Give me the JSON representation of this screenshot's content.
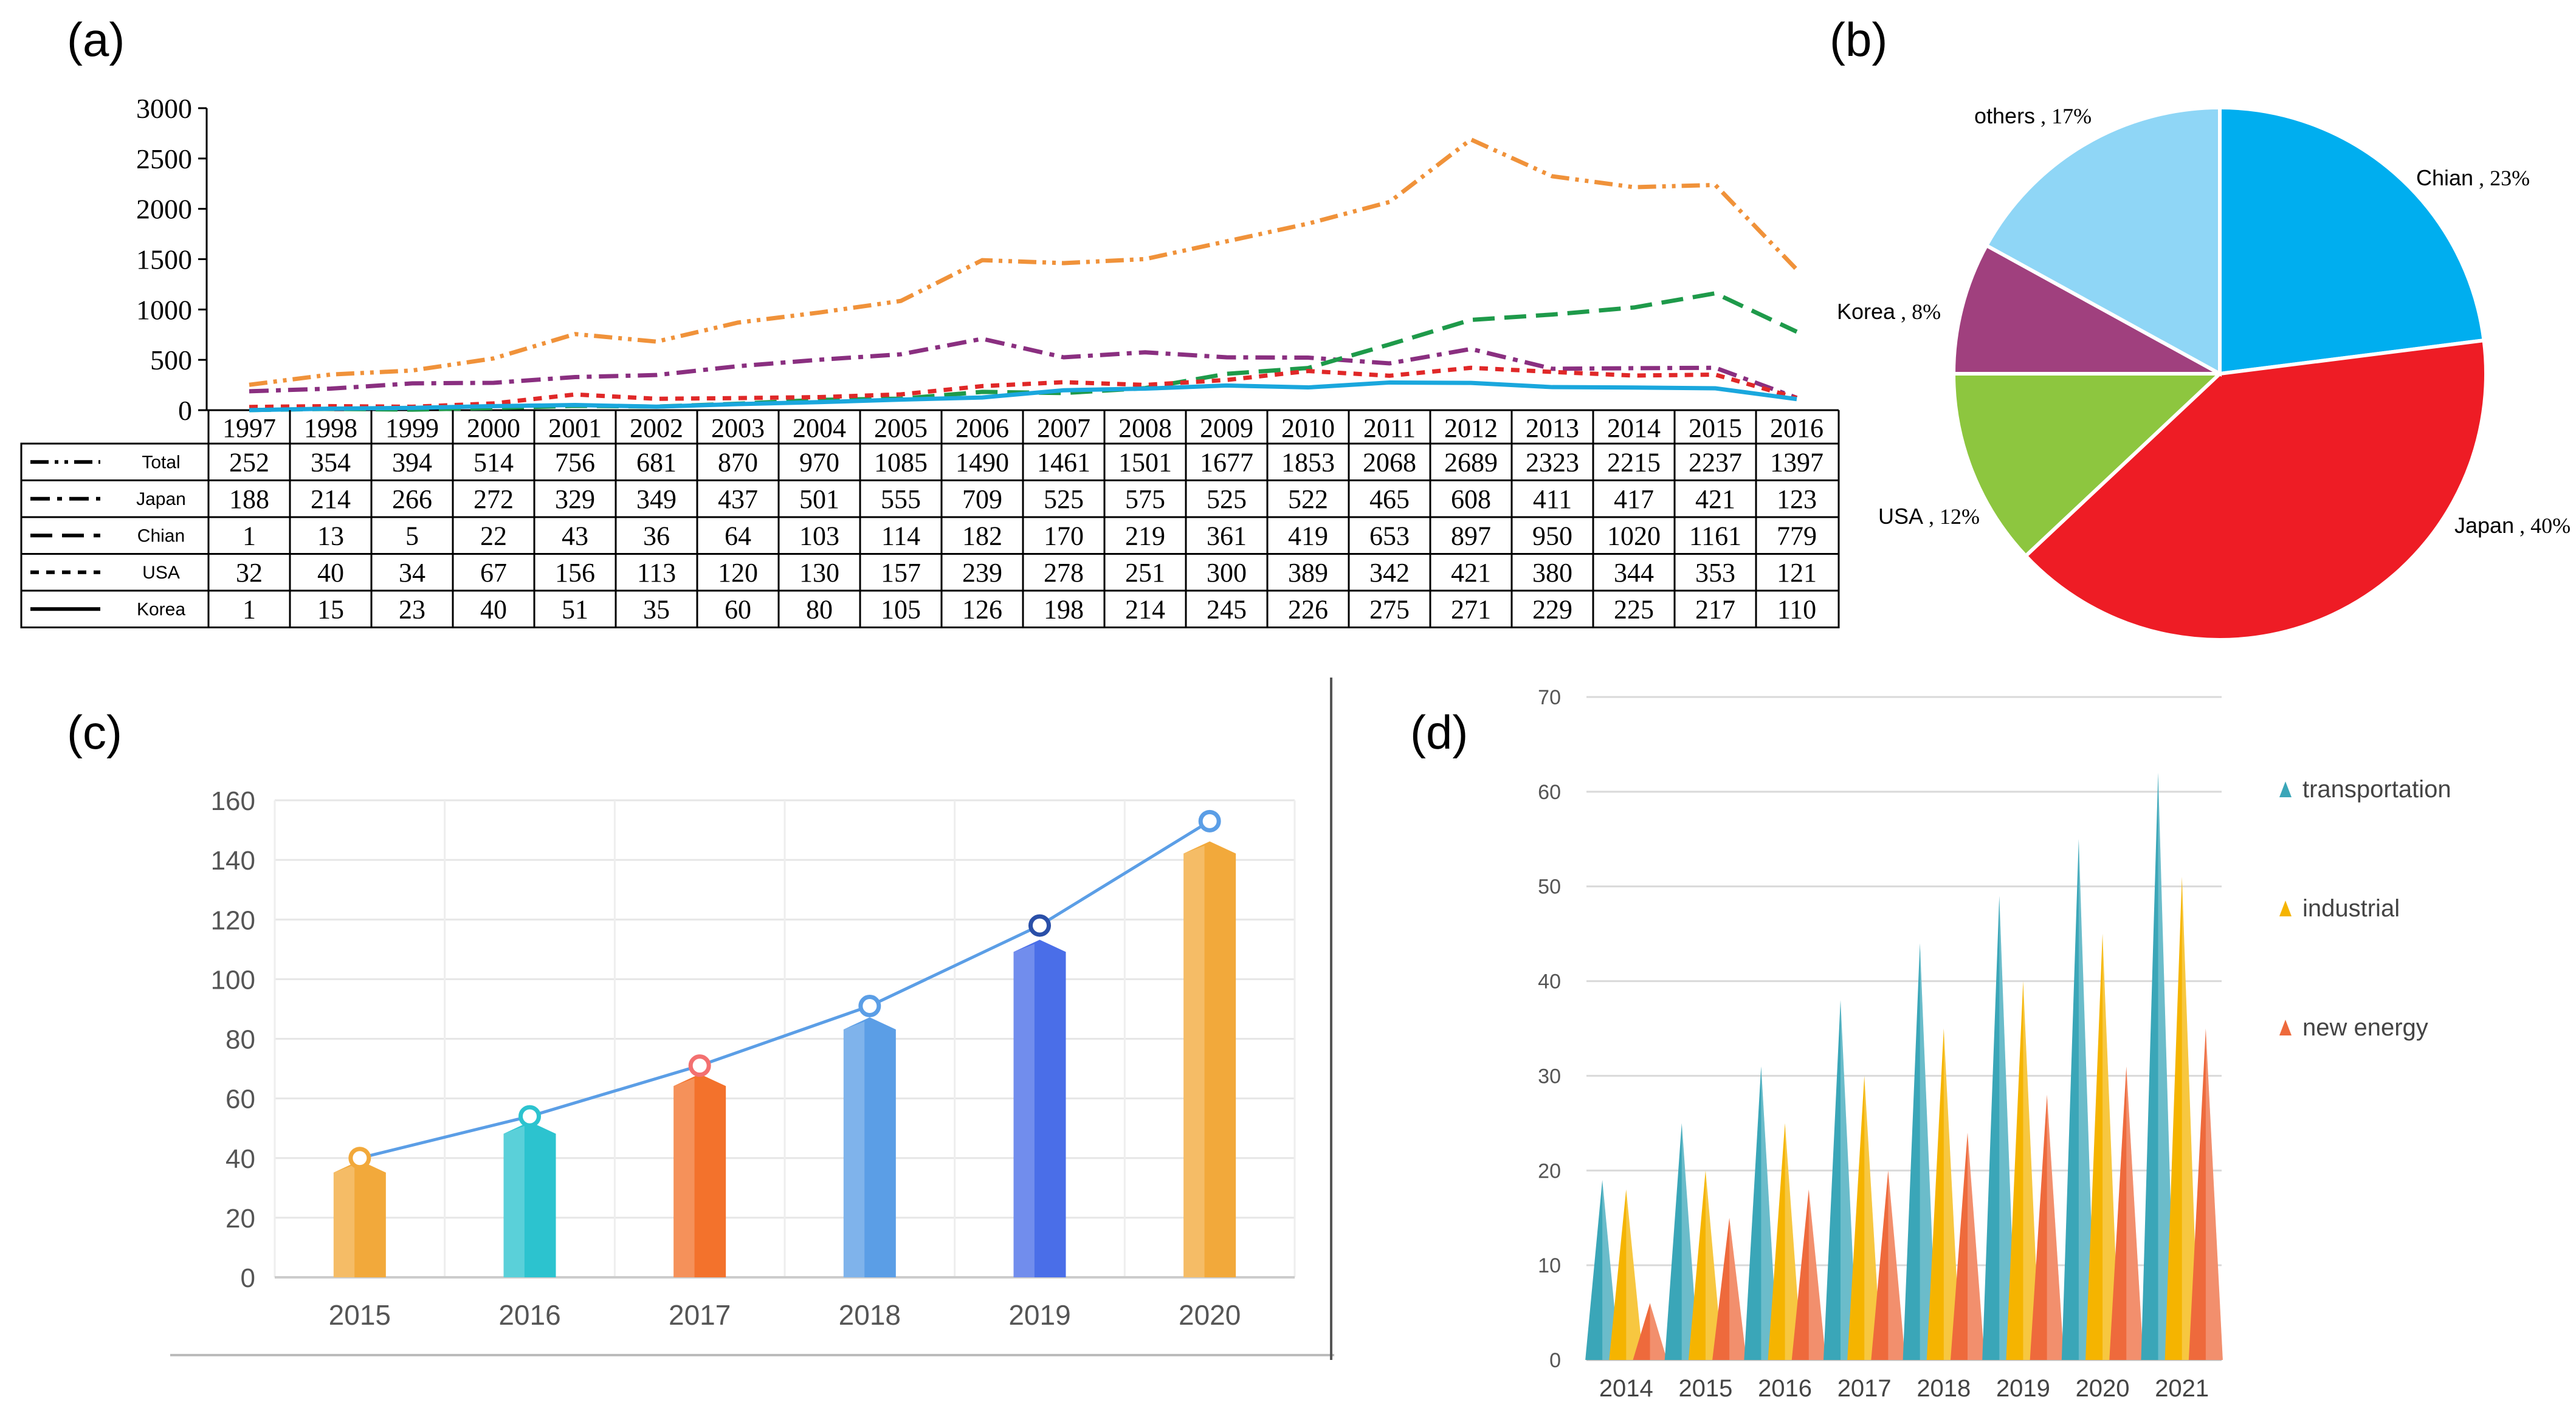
{
  "panels": {
    "a": "(a)",
    "b": "(b)",
    "c": "(c)",
    "d": "(d)"
  },
  "chart_data": [
    {
      "panel": "(a)",
      "type": "line",
      "title": "",
      "xlabel": "",
      "ylabel": "",
      "ylim": [
        0,
        3000
      ],
      "yticks": [
        0,
        500,
        1000,
        1500,
        2000,
        2500,
        3000
      ],
      "x": [
        "1997",
        "1998",
        "1999",
        "2000",
        "2001",
        "2002",
        "2003",
        "2004",
        "2005",
        "2006",
        "2007",
        "2008",
        "2009",
        "2010",
        "2011",
        "2012",
        "2013",
        "2014",
        "2015",
        "2016"
      ],
      "series": [
        {
          "name": "Total",
          "style": "dash-dot-dot",
          "color": "#f0923a",
          "values": [
            252,
            354,
            394,
            514,
            756,
            681,
            870,
            970,
            1085,
            1490,
            1461,
            1501,
            1677,
            1853,
            2068,
            2689,
            2323,
            2215,
            2237,
            1397
          ]
        },
        {
          "name": "Japan",
          "style": "dash-dot",
          "color": "#8a2f80",
          "values": [
            188,
            214,
            266,
            272,
            329,
            349,
            437,
            501,
            555,
            709,
            525,
            575,
            525,
            522,
            465,
            608,
            411,
            417,
            421,
            123
          ]
        },
        {
          "name": "Chian",
          "style": "long-dash",
          "color": "#1e9a4a",
          "values": [
            1,
            13,
            5,
            22,
            43,
            36,
            64,
            103,
            114,
            182,
            170,
            219,
            361,
            419,
            653,
            897,
            950,
            1020,
            1161,
            779
          ]
        },
        {
          "name": "USA",
          "style": "short-dash",
          "color": "#e02828",
          "values": [
            32,
            40,
            34,
            67,
            156,
            113,
            120,
            130,
            157,
            239,
            278,
            251,
            300,
            389,
            342,
            421,
            380,
            344,
            353,
            121
          ]
        },
        {
          "name": "Korea",
          "style": "solid",
          "color": "#1aa7dd",
          "values": [
            1,
            15,
            23,
            40,
            51,
            35,
            60,
            80,
            105,
            126,
            198,
            214,
            245,
            226,
            275,
            271,
            229,
            225,
            217,
            110
          ]
        }
      ]
    },
    {
      "panel": "(b)",
      "type": "pie",
      "title": "",
      "slices": [
        {
          "label": "Chian",
          "pct_text": "23%",
          "value": 23,
          "color": "#00aeef"
        },
        {
          "label": "Japan",
          "pct_text": "40%",
          "value": 40,
          "color": "#ee1c25"
        },
        {
          "label": "USA",
          "pct_text": "12%",
          "value": 12,
          "color": "#8dc63f"
        },
        {
          "label": "Korea",
          "pct_text": "8%",
          "value": 8,
          "color": "#a0407e"
        },
        {
          "label": "others",
          "pct_text": "17%",
          "value": 17,
          "color": "#8fd6f6"
        }
      ]
    },
    {
      "panel": "(c)",
      "type": "bar",
      "title": "",
      "xlabel": "",
      "ylabel": "",
      "ylim": [
        0,
        160
      ],
      "yticks": [
        0,
        20,
        40,
        60,
        80,
        100,
        120,
        140,
        160
      ],
      "categories": [
        "2015",
        "2016",
        "2017",
        "2018",
        "2019",
        "2020"
      ],
      "values": [
        38,
        51,
        67,
        86,
        112,
        145
      ],
      "line_values": [
        40,
        54,
        71,
        91,
        118,
        153
      ],
      "colors": [
        "#f2a93b",
        "#2cc3cf",
        "#f3722c",
        "#5b9ee6",
        "#4a6ee8",
        "#f2a93b"
      ],
      "marker_colors": [
        "#f2a93b",
        "#2cc3cf",
        "#f37070",
        "#5b9ee6",
        "#2a4fa8",
        "#5b9ee6"
      ],
      "line_color": "#5b9ee6"
    },
    {
      "panel": "(d)",
      "type": "bar",
      "title": "",
      "xlabel": "",
      "ylabel": "",
      "ylim": [
        0,
        70
      ],
      "yticks": [
        0,
        10,
        20,
        30,
        40,
        50,
        60,
        70
      ],
      "categories": [
        "2014",
        "2015",
        "2016",
        "2017",
        "2018",
        "2019",
        "2020",
        "2021"
      ],
      "series": [
        {
          "name": "transportation",
          "color": "#3aa6b8",
          "values": [
            19,
            25,
            31,
            38,
            44,
            49,
            55,
            62
          ]
        },
        {
          "name": "industrial",
          "color": "#f5b400",
          "values": [
            18,
            20,
            25,
            30,
            35,
            40,
            45,
            51
          ]
        },
        {
          "name": "new energy",
          "color": "#ee6a3c",
          "values": [
            6,
            15,
            18,
            20,
            24,
            28,
            31,
            35
          ]
        }
      ]
    }
  ]
}
